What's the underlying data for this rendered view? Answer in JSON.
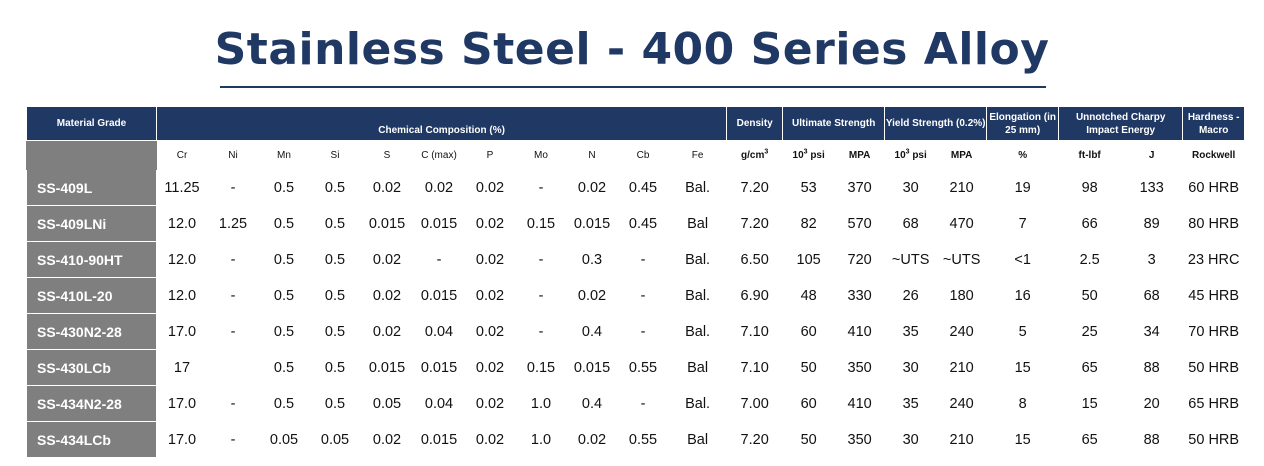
{
  "title": "Stainless Steel - 400 Series Alloy",
  "headers": {
    "material_grade": "Material Grade",
    "chemical_composition": "Chemical Composition (%)",
    "density": "Density",
    "ultimate_strength": "Ultimate Strength",
    "yield_strength": "Yield Strength (0.2%)",
    "elongation": "Elongation (in 25 mm)",
    "charpy": "Unnotched Charpy Impact Energy",
    "hardness": "Hardness - Macro"
  },
  "subheaders": [
    "Cr",
    "Ni",
    "Mn",
    "Si",
    "S",
    "C (max)",
    "P",
    "Mo",
    "N",
    "Cb",
    "Fe",
    "g/cm3",
    "103 psi",
    "MPA",
    "103 psi",
    "MPA",
    "%",
    "ft-lbf",
    "J",
    "Rockwell"
  ],
  "rows": [
    [
      "SS-409L",
      "11.25",
      "-",
      "0.5",
      "0.5",
      "0.02",
      "0.02",
      "0.02",
      "-",
      "0.02",
      "0.45",
      "Bal.",
      "7.20",
      "53",
      "370",
      "30",
      "210",
      "19",
      "98",
      "133",
      "60 HRB"
    ],
    [
      "SS-409LNi",
      "12.0",
      "1.25",
      "0.5",
      "0.5",
      "0.015",
      "0.015",
      "0.02",
      "0.15",
      "0.015",
      "0.45",
      "Bal",
      "7.20",
      "82",
      "570",
      "68",
      "470",
      "7",
      "66",
      "89",
      "80 HRB"
    ],
    [
      "SS-410-90HT",
      "12.0",
      "-",
      "0.5",
      "0.5",
      "0.02",
      "-",
      "0.02",
      "-",
      "0.3",
      "-",
      "Bal.",
      "6.50",
      "105",
      "720",
      "~UTS",
      "~UTS",
      "<1",
      "2.5",
      "3",
      "23 HRC"
    ],
    [
      "SS-410L-20",
      "12.0",
      "-",
      "0.5",
      "0.5",
      "0.02",
      "0.015",
      "0.02",
      "-",
      "0.02",
      "-",
      "Bal.",
      "6.90",
      "48",
      "330",
      "26",
      "180",
      "16",
      "50",
      "68",
      "45 HRB"
    ],
    [
      "SS-430N2-28",
      "17.0",
      "-",
      "0.5",
      "0.5",
      "0.02",
      "0.04",
      "0.02",
      "-",
      "0.4",
      "-",
      "Bal.",
      "7.10",
      "60",
      "410",
      "35",
      "240",
      "5",
      "25",
      "34",
      "70 HRB"
    ],
    [
      "SS-430LCb",
      "17",
      "",
      "0.5",
      "0.5",
      "0.015",
      "0.015",
      "0.02",
      "0.15",
      "0.015",
      "0.55",
      "Bal",
      "7.10",
      "50",
      "350",
      "30",
      "210",
      "15",
      "65",
      "88",
      "50 HRB"
    ],
    [
      "SS-434N2-28",
      "17.0",
      "-",
      "0.5",
      "0.5",
      "0.05",
      "0.04",
      "0.02",
      "1.0",
      "0.4",
      "-",
      "Bal.",
      "7.00",
      "60",
      "410",
      "35",
      "240",
      "8",
      "15",
      "20",
      "65 HRB"
    ],
    [
      "SS-434LCb",
      "17.0",
      "-",
      "0.05",
      "0.05",
      "0.02",
      "0.015",
      "0.02",
      "1.0",
      "0.02",
      "0.55",
      "Bal",
      "7.20",
      "50",
      "350",
      "30",
      "210",
      "15",
      "65",
      "88",
      "50 HRB"
    ]
  ]
}
